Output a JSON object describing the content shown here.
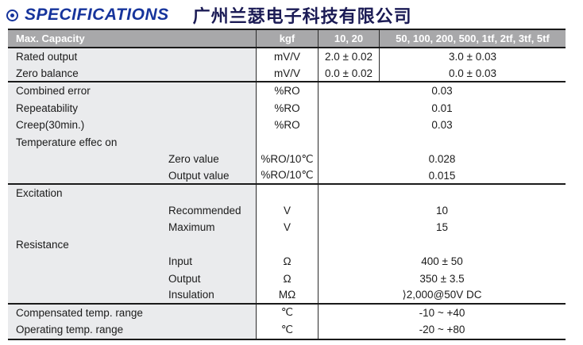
{
  "page": {
    "title": "SPECIFICATIONS",
    "company": "广州兰瑟电子科技有限公司",
    "colors": {
      "accent": "#16349c",
      "header_bg": "#a8a8aa",
      "label_bg": "#eaebed",
      "company_text": "#1b1b55"
    },
    "icons": {
      "title_bullet": "bullseye"
    }
  },
  "table": {
    "header": {
      "capacity_label": "Max. Capacity",
      "unit": "kgf",
      "range_low": "10, 20",
      "range_high": "50, 100, 200, 500, 1tf, 2tf, 3tf, 5tf"
    },
    "rows": [
      {
        "label": "Rated output",
        "indent": 0,
        "unit": "mV/V",
        "value_low": "2.0 ± 0.02",
        "value_high": "3.0 ± 0.03",
        "group_end": false
      },
      {
        "label": "Zero balance",
        "indent": 0,
        "unit": "mV/V",
        "value_low": "0.0 ± 0.02",
        "value_high": "0.0 ± 0.03",
        "group_end": true
      },
      {
        "label": "Combined error",
        "indent": 0,
        "unit": "%RO",
        "value_merged": "0.03",
        "group_end": false
      },
      {
        "label": "Repeatability",
        "indent": 0,
        "unit": "%RO",
        "value_merged": "0.01",
        "group_end": false
      },
      {
        "label": "Creep(30min.)",
        "indent": 0,
        "unit": "%RO",
        "value_merged": "0.03",
        "group_end": false
      },
      {
        "label": "Temperature effec on",
        "indent": 0,
        "unit": "",
        "value_merged": "",
        "group_end": false
      },
      {
        "label": "Zero value",
        "indent": 1,
        "unit": "%RO/10℃",
        "value_merged": "0.028",
        "group_end": false
      },
      {
        "label": "Output value",
        "indent": 1,
        "unit": "%RO/10℃",
        "value_merged": "0.015",
        "group_end": true
      },
      {
        "label": "Excitation",
        "indent": 0,
        "unit": "",
        "value_merged": "",
        "group_end": false
      },
      {
        "label": "Recommended",
        "indent": 1,
        "unit": "V",
        "value_merged": "10",
        "group_end": false
      },
      {
        "label": "Maximum",
        "indent": 1,
        "unit": "V",
        "value_merged": "15",
        "group_end": false
      },
      {
        "label": "Resistance",
        "indent": 0,
        "unit": "",
        "value_merged": "",
        "group_end": false
      },
      {
        "label": "Input",
        "indent": 1,
        "unit": "Ω",
        "value_merged": "400 ± 50",
        "group_end": false
      },
      {
        "label": "Output",
        "indent": 1,
        "unit": "Ω",
        "value_merged": "350 ± 3.5",
        "group_end": false
      },
      {
        "label": "Insulation",
        "indent": 1,
        "unit": "MΩ",
        "value_merged": "⟩2,000@50V DC",
        "group_end": true
      },
      {
        "label": "Compensated temp. range",
        "indent": 0,
        "unit": "℃",
        "value_merged": "-10 ~ +40",
        "group_end": false
      },
      {
        "label": "Operating temp. range",
        "indent": 0,
        "unit": "℃",
        "value_merged": "-20 ~ +80",
        "group_end": false
      }
    ]
  }
}
